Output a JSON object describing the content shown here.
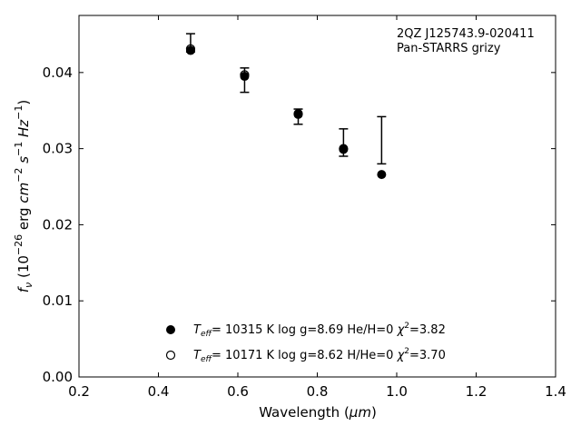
{
  "chart_data": {
    "type": "scatter",
    "annotation": [
      "2QZ J125743.9-020411",
      "Pan-STARRS grizy"
    ],
    "xlabel_main": "Wavelength (",
    "xlabel_unit": "μm",
    "xlabel_end": ")",
    "ylabel_parts": {
      "fnu": "f",
      "nu": "ν",
      "open": " (10",
      "exp1": "−26",
      "mid": " erg ",
      "cm": "cm",
      "exp2": "−2",
      "s": " s",
      "exp3": "−1",
      "hz": " Hz",
      "exp4": "−1",
      "close": ")"
    },
    "xlim": [
      0.2,
      1.4
    ],
    "ylim": [
      0.0,
      0.0475
    ],
    "xticks": [
      0.2,
      0.4,
      0.6,
      0.8,
      1.0,
      1.2,
      1.4
    ],
    "xtick_labels": [
      "0.2",
      "0.4",
      "0.6",
      "0.8",
      "1.0",
      "1.2",
      "1.4"
    ],
    "yticks": [
      0.0,
      0.01,
      0.02,
      0.03,
      0.04
    ],
    "ytick_labels": [
      "0.00",
      "0.01",
      "0.02",
      "0.03",
      "0.04"
    ],
    "grid": false,
    "observed": {
      "wavelength": [
        0.481,
        0.617,
        0.752,
        0.866,
        0.962
      ],
      "flux": [
        0.0439,
        0.039,
        0.0342,
        0.0308,
        0.0311
      ],
      "err": [
        0.0012,
        0.0016,
        0.001,
        0.0018,
        0.0031
      ]
    },
    "series": [
      {
        "marker": "filled",
        "T": "T",
        "eff": "eff",
        "rest": "= 10315 K  log g=8.69  He/H=0  ",
        "chi": "χ",
        "chi_exp": "2",
        "chi_val": "=3.82",
        "x": [
          0.481,
          0.617,
          0.752,
          0.866,
          0.962
        ],
        "y": [
          0.0429,
          0.0395,
          0.0345,
          0.0299,
          0.0266
        ]
      },
      {
        "marker": "open",
        "T": "T",
        "eff": "eff",
        "rest": "= 10171 K  log g=8.62  H/He=0  ",
        "chi": "χ",
        "chi_exp": "2",
        "chi_val": "=3.70",
        "x": [
          0.481,
          0.617,
          0.752,
          0.866
        ],
        "y": [
          0.0431,
          0.0397,
          0.0346,
          0.03
        ]
      }
    ],
    "legend_location": "lower-center"
  }
}
